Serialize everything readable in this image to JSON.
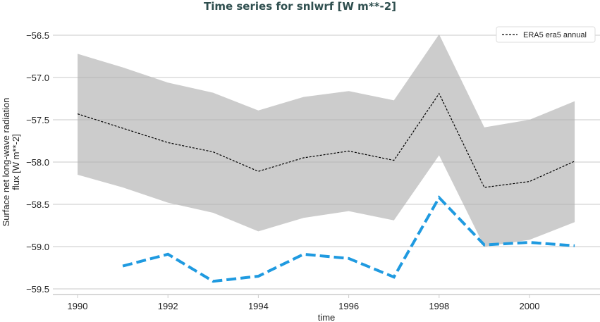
{
  "chart_data": {
    "type": "line",
    "title": "Time series for snlwrf [W m**-2]",
    "xlabel": "time",
    "ylabel": "Surface net long-wave radiation flux [W m**-2]",
    "xlim": [
      1989.4,
      2001.6
    ],
    "ylim": [
      -59.6,
      -56.45
    ],
    "xticks": [
      1990,
      1992,
      1994,
      1996,
      1998,
      2000
    ],
    "yticks": [
      -59.5,
      -59.0,
      -58.5,
      -58.0,
      -57.5,
      -57.0,
      -56.5
    ],
    "ytick_labels": [
      "−59.5",
      "−59.0",
      "−58.5",
      "−58.0",
      "−57.5",
      "−57.0",
      "−56.5"
    ],
    "grid": "horizontal",
    "legend_position": "top-right",
    "x": [
      1990,
      1991,
      1992,
      1993,
      1994,
      1995,
      1996,
      1997,
      1998,
      1999,
      2000,
      2001
    ],
    "series": [
      {
        "name": "ERA5 era5 annual",
        "color": "#000000",
        "style": "dashed-thin",
        "values": [
          -57.43,
          -57.6,
          -57.77,
          -57.88,
          -58.11,
          -57.95,
          -57.87,
          -57.98,
          -57.19,
          -58.3,
          -58.23,
          -57.99
        ]
      },
      {
        "color": "#1f9ae0",
        "style": "dashed-thick",
        "values": [
          null,
          -59.23,
          -59.09,
          -59.41,
          -59.35,
          -59.09,
          -59.14,
          -59.36,
          -58.42,
          -58.98,
          -58.95,
          -58.99
        ]
      }
    ],
    "band": {
      "color": "#cccccc",
      "upper": [
        -56.72,
        -56.88,
        -57.06,
        -57.18,
        -57.39,
        -57.23,
        -57.16,
        -57.27,
        -56.49,
        -57.59,
        -57.5,
        -57.28
      ],
      "lower": [
        -58.15,
        -58.3,
        -58.48,
        -58.6,
        -58.82,
        -58.66,
        -58.58,
        -58.69,
        -57.92,
        -59.0,
        -58.92,
        -58.71
      ]
    }
  }
}
